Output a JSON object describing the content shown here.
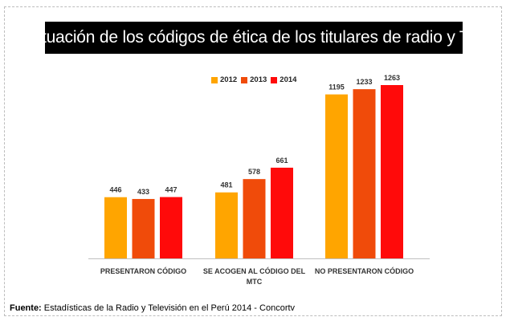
{
  "title": "Situación de los códigos de ética de los titulares de radio y TV",
  "source": {
    "label": "Fuente:",
    "text": " Estadísticas de la Radio y Televisión en el Perú 2014 - Concortv"
  },
  "chart_data": {
    "type": "bar",
    "title": "Situación de los códigos de ética de los titulares de radio y TV",
    "categories": [
      [
        "PRESENTARON CÓDIGO"
      ],
      [
        "SE ACOGEN AL CÓDIGO DEL",
        "MTC"
      ],
      [
        "NO PRESENTARON CÓDIGO"
      ]
    ],
    "series": [
      {
        "name": "2012",
        "color": "#FFA500",
        "values": [
          446,
          481,
          1195
        ]
      },
      {
        "name": "2013",
        "color": "#F04B0A",
        "values": [
          433,
          578,
          1233
        ]
      },
      {
        "name": "2014",
        "color": "#FF0A0A",
        "values": [
          447,
          661,
          1263
        ]
      }
    ],
    "legend_position": "top-center",
    "ylim": [
      0,
      1400
    ],
    "grid": false,
    "y_axis_visible": false
  }
}
